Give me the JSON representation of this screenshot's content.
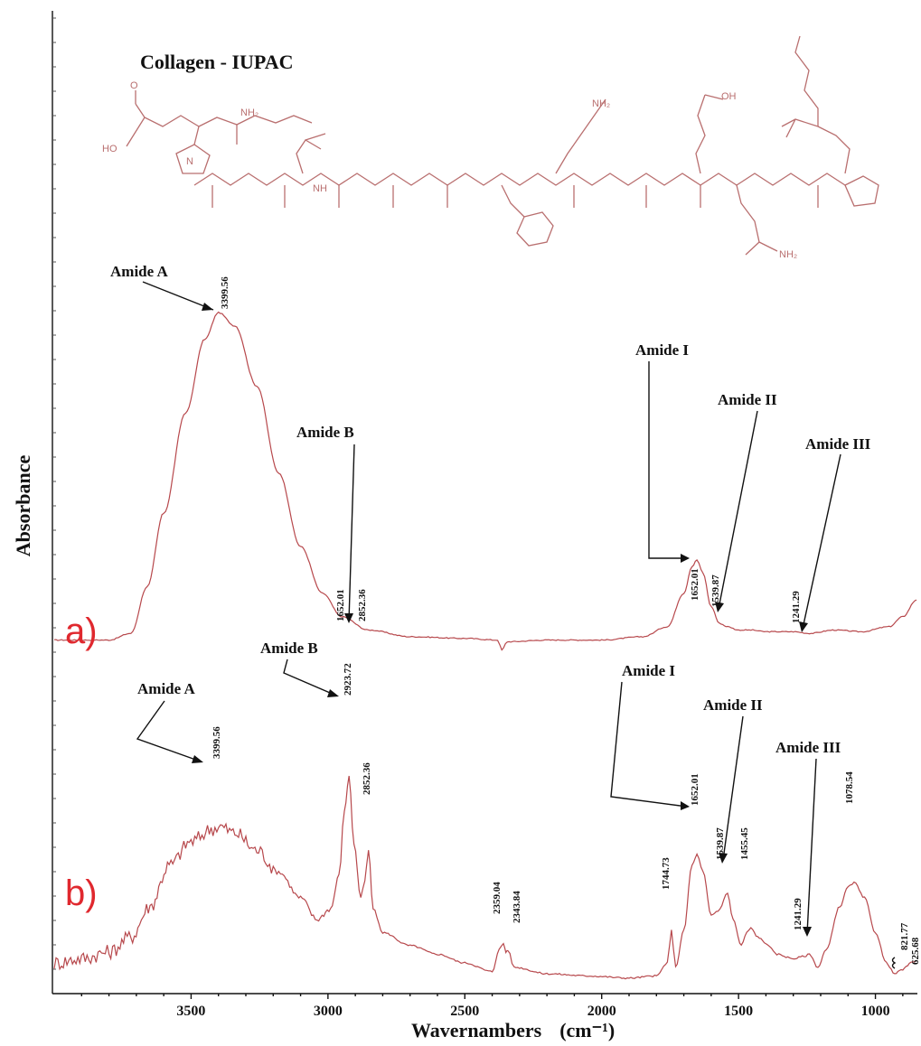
{
  "figure": {
    "molecule_title": "Collagen - IUPAC",
    "atom_labels": [
      "NH₂",
      "HO",
      "O",
      "N",
      "NH",
      "OH",
      "NH₂",
      "NH₂"
    ]
  },
  "chart_data": {
    "type": "line",
    "x_axis": {
      "label": "Wavernambers",
      "unit": "(cm⁻¹)",
      "range": [
        4000,
        850
      ],
      "reversed": true,
      "ticks": [
        "3500",
        "3000",
        "2500",
        "2000",
        "1500",
        "1000"
      ],
      "tick_values": [
        3500,
        3000,
        2500,
        2000,
        1500,
        1000
      ]
    },
    "y_axis": {
      "label": "Absorbance",
      "tick_labels": false
    },
    "grid": false,
    "series": [
      {
        "panel": "a)",
        "points": [
          [
            4000,
            0.02
          ],
          [
            3800,
            0.02
          ],
          [
            3720,
            0.04
          ],
          [
            3660,
            0.18
          ],
          [
            3600,
            0.4
          ],
          [
            3520,
            0.7
          ],
          [
            3450,
            0.92
          ],
          [
            3400,
            1.0
          ],
          [
            3340,
            0.96
          ],
          [
            3260,
            0.78
          ],
          [
            3180,
            0.52
          ],
          [
            3100,
            0.3
          ],
          [
            3020,
            0.16
          ],
          [
            2950,
            0.09
          ],
          [
            2852,
            0.05
          ],
          [
            2700,
            0.03
          ],
          [
            2500,
            0.025
          ],
          [
            2380,
            0.02
          ],
          [
            2365,
            -0.01
          ],
          [
            2345,
            0.015
          ],
          [
            2200,
            0.02
          ],
          [
            2000,
            0.02
          ],
          [
            1850,
            0.03
          ],
          [
            1760,
            0.06
          ],
          [
            1700,
            0.16
          ],
          [
            1670,
            0.24
          ],
          [
            1652,
            0.26
          ],
          [
            1630,
            0.22
          ],
          [
            1600,
            0.12
          ],
          [
            1570,
            0.07
          ],
          [
            1540,
            0.06
          ],
          [
            1500,
            0.05
          ],
          [
            1455,
            0.05
          ],
          [
            1400,
            0.045
          ],
          [
            1300,
            0.045
          ],
          [
            1241,
            0.04
          ],
          [
            1150,
            0.05
          ],
          [
            1050,
            0.045
          ],
          [
            950,
            0.06
          ],
          [
            900,
            0.09
          ],
          [
            850,
            0.14
          ]
        ],
        "annotations": [
          {
            "label": "Amide A",
            "peaks": [
              "3399.56"
            ]
          },
          {
            "label": "Amide B",
            "peaks": [
              "1652.01",
              "2852.36"
            ]
          },
          {
            "label": "Amide I",
            "peaks": [
              "1652.01"
            ]
          },
          {
            "label": "Amide II",
            "peaks": [
              "1539.87"
            ]
          },
          {
            "label": "Amide III",
            "peaks": [
              "1241.29"
            ]
          }
        ]
      },
      {
        "panel": "b)",
        "points": [
          [
            4000,
            0.1
          ],
          [
            3900,
            0.12
          ],
          [
            3800,
            0.15
          ],
          [
            3720,
            0.22
          ],
          [
            3650,
            0.36
          ],
          [
            3580,
            0.55
          ],
          [
            3500,
            0.66
          ],
          [
            3420,
            0.72
          ],
          [
            3399,
            0.73
          ],
          [
            3340,
            0.7
          ],
          [
            3260,
            0.62
          ],
          [
            3180,
            0.52
          ],
          [
            3100,
            0.4
          ],
          [
            3040,
            0.3
          ],
          [
            2990,
            0.35
          ],
          [
            2960,
            0.5
          ],
          [
            2940,
            0.8
          ],
          [
            2923,
            0.96
          ],
          [
            2905,
            0.65
          ],
          [
            2880,
            0.4
          ],
          [
            2865,
            0.48
          ],
          [
            2852,
            0.62
          ],
          [
            2835,
            0.35
          ],
          [
            2800,
            0.24
          ],
          [
            2700,
            0.18
          ],
          [
            2600,
            0.14
          ],
          [
            2500,
            0.1
          ],
          [
            2400,
            0.06
          ],
          [
            2375,
            0.16
          ],
          [
            2359,
            0.19
          ],
          [
            2350,
            0.15
          ],
          [
            2343,
            0.16
          ],
          [
            2320,
            0.08
          ],
          [
            2200,
            0.05
          ],
          [
            2050,
            0.04
          ],
          [
            1900,
            0.03
          ],
          [
            1800,
            0.04
          ],
          [
            1760,
            0.1
          ],
          [
            1745,
            0.25
          ],
          [
            1730,
            0.08
          ],
          [
            1700,
            0.25
          ],
          [
            1670,
            0.55
          ],
          [
            1652,
            0.6
          ],
          [
            1630,
            0.52
          ],
          [
            1600,
            0.32
          ],
          [
            1575,
            0.34
          ],
          [
            1540,
            0.42
          ],
          [
            1520,
            0.3
          ],
          [
            1490,
            0.18
          ],
          [
            1470,
            0.24
          ],
          [
            1455,
            0.26
          ],
          [
            1430,
            0.22
          ],
          [
            1400,
            0.19
          ],
          [
            1360,
            0.14
          ],
          [
            1300,
            0.12
          ],
          [
            1260,
            0.13
          ],
          [
            1241,
            0.14
          ],
          [
            1210,
            0.08
          ],
          [
            1180,
            0.16
          ],
          [
            1130,
            0.36
          ],
          [
            1100,
            0.45
          ],
          [
            1078,
            0.47
          ],
          [
            1040,
            0.4
          ],
          [
            1000,
            0.24
          ],
          [
            960,
            0.1
          ],
          [
            930,
            0.05
          ],
          [
            900,
            0.07
          ],
          [
            870,
            0.1
          ],
          [
            850,
            0.11
          ]
        ],
        "annotations": [
          {
            "label": "Amide A",
            "peaks": [
              "3399.56"
            ]
          },
          {
            "label": "Amide B",
            "peaks": [
              "2923.72",
              "2852.36"
            ]
          },
          {
            "label": "Amide I",
            "peaks": [
              "1652.01"
            ]
          },
          {
            "label": "Amide II",
            "peaks": [
              "1539.87"
            ]
          },
          {
            "label": "Amide III",
            "peaks": [
              "1241.29"
            ]
          }
        ],
        "other_peaks": [
          "2359.04",
          "2343.84",
          "1744.73",
          "1455.45",
          "1078.54",
          "821.77",
          "625.68"
        ]
      }
    ]
  }
}
